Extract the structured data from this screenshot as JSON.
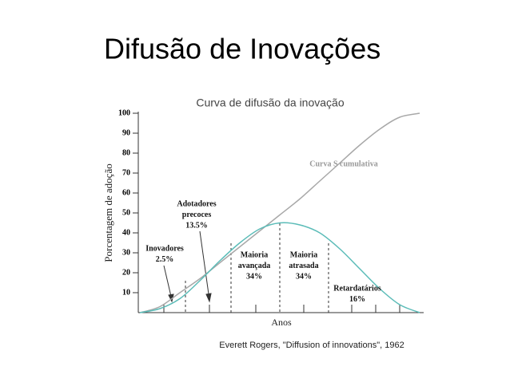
{
  "title": "Difusão de Inovações",
  "chart_data": {
    "type": "line",
    "title": "Curva de difusão da inovação",
    "x_label": "Anos",
    "y_label": "Porcentagem de adoção",
    "categories": [
      null,
      null,
      null,
      null,
      null,
      null,
      null,
      null,
      null,
      null,
      null,
      null,
      null,
      null,
      null
    ],
    "series": [
      {
        "name": "Curva S cumulativa",
        "color": "#a8a8a8",
        "values": [
          0,
          3,
          10,
          17,
          25,
          33,
          41,
          49,
          57,
          66,
          75,
          84,
          92,
          98,
          100
        ]
      },
      {
        "color": "#5bbcb8",
        "values": [
          0,
          2,
          7,
          16,
          26,
          35,
          42,
          45,
          44,
          40,
          32,
          22,
          12,
          4,
          0
        ]
      }
    ],
    "ylim": [
      0,
      100
    ],
    "yticks": [
      10,
      20,
      30,
      40,
      50,
      60,
      70,
      80,
      90,
      100
    ],
    "annotations": [
      {
        "lines": [
          "Inovadores",
          "2.5%"
        ]
      },
      {
        "lines": [
          "Adotadores",
          "precoces",
          "13.5%"
        ]
      },
      {
        "lines": [
          "Maioria",
          "avançada",
          "34%"
        ]
      },
      {
        "lines": [
          "Maioria",
          "atrasada",
          "34%"
        ]
      },
      {
        "lines": [
          "Retardatários",
          "16%"
        ]
      }
    ],
    "source": "Everett Rogers, \"Diffusion of innovations\", 1962"
  }
}
